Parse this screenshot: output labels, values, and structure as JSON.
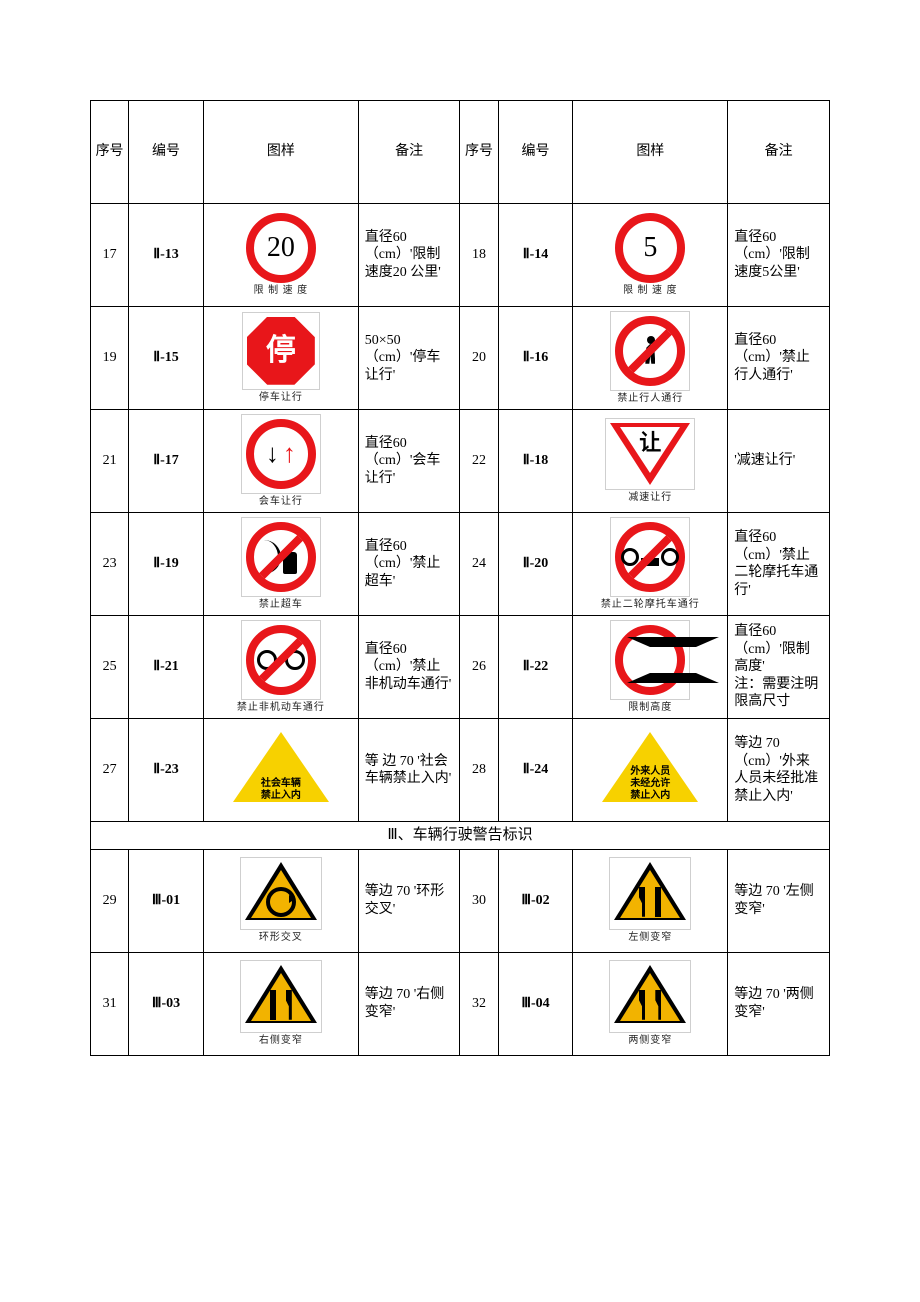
{
  "colors": {
    "red": "#e8161a",
    "yellow_triangle": "#f7d100",
    "warn_yellow": "#f2b300",
    "black": "#000000",
    "white": "#ffffff",
    "frame_gray": "#cfcfcf"
  },
  "headers": {
    "seq": "序号",
    "code": "编号",
    "figure": "图样",
    "note": "备注"
  },
  "section_heading": "Ⅲ、车辆行驶警告标识",
  "rows": [
    {
      "seq": "17",
      "code": "Ⅱ-13",
      "caption": "限 制 速 度",
      "note": "直径60（cm）'限制速度20 公里'",
      "sign": {
        "type": "speed",
        "value": "20"
      }
    },
    {
      "seq": "18",
      "code": "Ⅱ-14",
      "caption": "限 制 速 度",
      "note": "直径60（cm）'限制速度5公里'",
      "sign": {
        "type": "speed",
        "value": "5"
      }
    },
    {
      "seq": "19",
      "code": "Ⅱ-15",
      "caption": "停车让行",
      "note": "50×50（cm）'停车让行'",
      "sign": {
        "type": "stop",
        "value": "停"
      }
    },
    {
      "seq": "20",
      "code": "Ⅱ-16",
      "caption": "禁止行人通行",
      "note": "直径60（cm）'禁止行人通行'",
      "sign": {
        "type": "no-pedestrian"
      }
    },
    {
      "seq": "21",
      "code": "Ⅱ-17",
      "caption": "会车让行",
      "note": "直径60（cm）'会车让行'",
      "sign": {
        "type": "meeting-yield"
      }
    },
    {
      "seq": "22",
      "code": "Ⅱ-18",
      "caption": "减速让行",
      "note": "'减速让行'",
      "sign": {
        "type": "yield",
        "value": "让"
      }
    },
    {
      "seq": "23",
      "code": "Ⅱ-19",
      "caption": "禁止超车",
      "note": "直径60（cm）'禁止超车'",
      "sign": {
        "type": "no-overtake"
      }
    },
    {
      "seq": "24",
      "code": "Ⅱ-20",
      "caption": "禁止二轮摩托车通行",
      "note": "直径60（cm）'禁止二轮摩托车通行'",
      "sign": {
        "type": "no-motorcycle"
      }
    },
    {
      "seq": "25",
      "code": "Ⅱ-21",
      "caption": "禁止非机动车通行",
      "note": "直径60（cm）'禁止非机动车通行'",
      "sign": {
        "type": "no-bicycle"
      }
    },
    {
      "seq": "26",
      "code": "Ⅱ-22",
      "caption": "限制高度",
      "note": "直径60（cm）'限制高度'\n注：需要注明限高尺寸",
      "sign": {
        "type": "height-limit"
      }
    },
    {
      "seq": "27",
      "code": "Ⅱ-23",
      "caption": "",
      "note": "等 边 70 '社会车辆禁止入内'",
      "sign": {
        "type": "tri-yellow",
        "value": "社会车辆\n禁止入内"
      }
    },
    {
      "seq": "28",
      "code": "Ⅱ-24",
      "caption": "",
      "note": "等边 70（cm）'外来人员未经批准禁止入内'",
      "sign": {
        "type": "tri-yellow",
        "value": "外来人员\n未经允许\n禁止入内"
      }
    },
    {
      "seq": "29",
      "code": "Ⅲ-01",
      "caption": "环形交叉",
      "note": "等边 70 '环形交叉'",
      "sign": {
        "type": "warn-rotary"
      }
    },
    {
      "seq": "30",
      "code": "Ⅲ-02",
      "caption": "左侧变窄",
      "note": "等边 70 '左侧变窄'",
      "sign": {
        "type": "warn-narrow",
        "value": "left"
      }
    },
    {
      "seq": "31",
      "code": "Ⅲ-03",
      "caption": "右侧变窄",
      "note": "等边 70 '右侧变窄'",
      "sign": {
        "type": "warn-narrow",
        "value": "right"
      }
    },
    {
      "seq": "32",
      "code": "Ⅲ-04",
      "caption": "两侧变窄",
      "note": "等边 70 '两侧变窄'",
      "sign": {
        "type": "warn-narrow",
        "value": "both"
      }
    }
  ]
}
